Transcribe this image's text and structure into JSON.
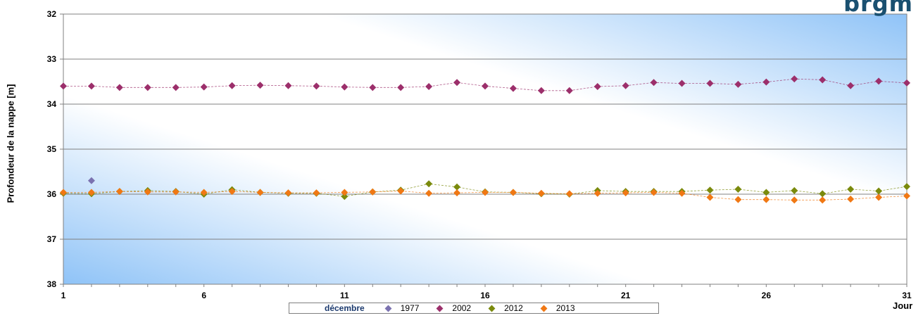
{
  "logo": "brgm",
  "chart_data": {
    "type": "scatter",
    "title": "",
    "ylabel": "Profondeur de la nappe [m]",
    "xlabel": "Jour",
    "xlim": [
      1,
      31
    ],
    "ylim": [
      32,
      38
    ],
    "y_inverted": true,
    "xticks": [
      1,
      6,
      11,
      16,
      21,
      26,
      31
    ],
    "yticks": [
      32,
      33,
      34,
      35,
      36,
      37,
      38
    ],
    "grid": "horizontal",
    "legend_title": "décembre",
    "legend_position": "bottom",
    "series": [
      {
        "name": "1977",
        "color": "#7b72b0",
        "lines": false,
        "points": [
          [
            2,
            35.7
          ]
        ]
      },
      {
        "name": "2002",
        "color": "#9c2f6b",
        "lines": true,
        "points": [
          [
            1,
            33.6
          ],
          [
            2,
            33.6
          ],
          [
            3,
            33.63
          ],
          [
            4,
            33.63
          ],
          [
            5,
            33.63
          ],
          [
            6,
            33.62
          ],
          [
            7,
            33.59
          ],
          [
            8,
            33.58
          ],
          [
            9,
            33.59
          ],
          [
            10,
            33.6
          ],
          [
            11,
            33.62
          ],
          [
            12,
            33.63
          ],
          [
            13,
            33.63
          ],
          [
            14,
            33.61
          ],
          [
            15,
            33.52
          ],
          [
            16,
            33.6
          ],
          [
            17,
            33.65
          ],
          [
            18,
            33.7
          ],
          [
            19,
            33.7
          ],
          [
            20,
            33.61
          ],
          [
            21,
            33.59
          ],
          [
            22,
            33.52
          ],
          [
            23,
            33.54
          ],
          [
            24,
            33.54
          ],
          [
            25,
            33.56
          ],
          [
            26,
            33.51
          ],
          [
            27,
            33.44
          ],
          [
            28,
            33.46
          ],
          [
            29,
            33.59
          ],
          [
            30,
            33.49
          ],
          [
            31,
            33.53
          ]
        ]
      },
      {
        "name": "2012",
        "color": "#7a8a0c",
        "lines": true,
        "points": [
          [
            1,
            35.98
          ],
          [
            2,
            35.99
          ],
          [
            3,
            35.94
          ],
          [
            4,
            35.92
          ],
          [
            5,
            35.94
          ],
          [
            6,
            36.0
          ],
          [
            7,
            35.9
          ],
          [
            8,
            35.96
          ],
          [
            9,
            35.98
          ],
          [
            10,
            35.98
          ],
          [
            11,
            36.05
          ],
          [
            12,
            35.95
          ],
          [
            13,
            35.91
          ],
          [
            14,
            35.77
          ],
          [
            15,
            35.84
          ],
          [
            16,
            35.95
          ],
          [
            17,
            35.96
          ],
          [
            18,
            35.99
          ],
          [
            19,
            36.0
          ],
          [
            20,
            35.92
          ],
          [
            21,
            35.94
          ],
          [
            22,
            35.94
          ],
          [
            23,
            35.94
          ],
          [
            24,
            35.91
          ],
          [
            25,
            35.89
          ],
          [
            26,
            35.96
          ],
          [
            27,
            35.92
          ],
          [
            28,
            35.99
          ],
          [
            29,
            35.89
          ],
          [
            30,
            35.93
          ],
          [
            31,
            35.83
          ]
        ]
      },
      {
        "name": "2013",
        "color": "#f07814",
        "lines": true,
        "points": [
          [
            1,
            35.96
          ],
          [
            2,
            35.96
          ],
          [
            3,
            35.94
          ],
          [
            4,
            35.95
          ],
          [
            5,
            35.95
          ],
          [
            6,
            35.96
          ],
          [
            7,
            35.94
          ],
          [
            8,
            35.96
          ],
          [
            9,
            35.97
          ],
          [
            10,
            35.97
          ],
          [
            11,
            35.96
          ],
          [
            12,
            35.95
          ],
          [
            13,
            35.93
          ],
          [
            14,
            35.98
          ],
          [
            15,
            35.97
          ],
          [
            16,
            35.96
          ],
          [
            17,
            35.96
          ],
          [
            18,
            35.98
          ],
          [
            19,
            35.99
          ],
          [
            20,
            35.98
          ],
          [
            21,
            35.97
          ],
          [
            22,
            35.96
          ],
          [
            23,
            35.98
          ],
          [
            24,
            36.07
          ],
          [
            25,
            36.12
          ],
          [
            26,
            36.12
          ],
          [
            27,
            36.13
          ],
          [
            28,
            36.13
          ],
          [
            29,
            36.11
          ],
          [
            30,
            36.07
          ],
          [
            31,
            36.04
          ]
        ]
      }
    ]
  }
}
